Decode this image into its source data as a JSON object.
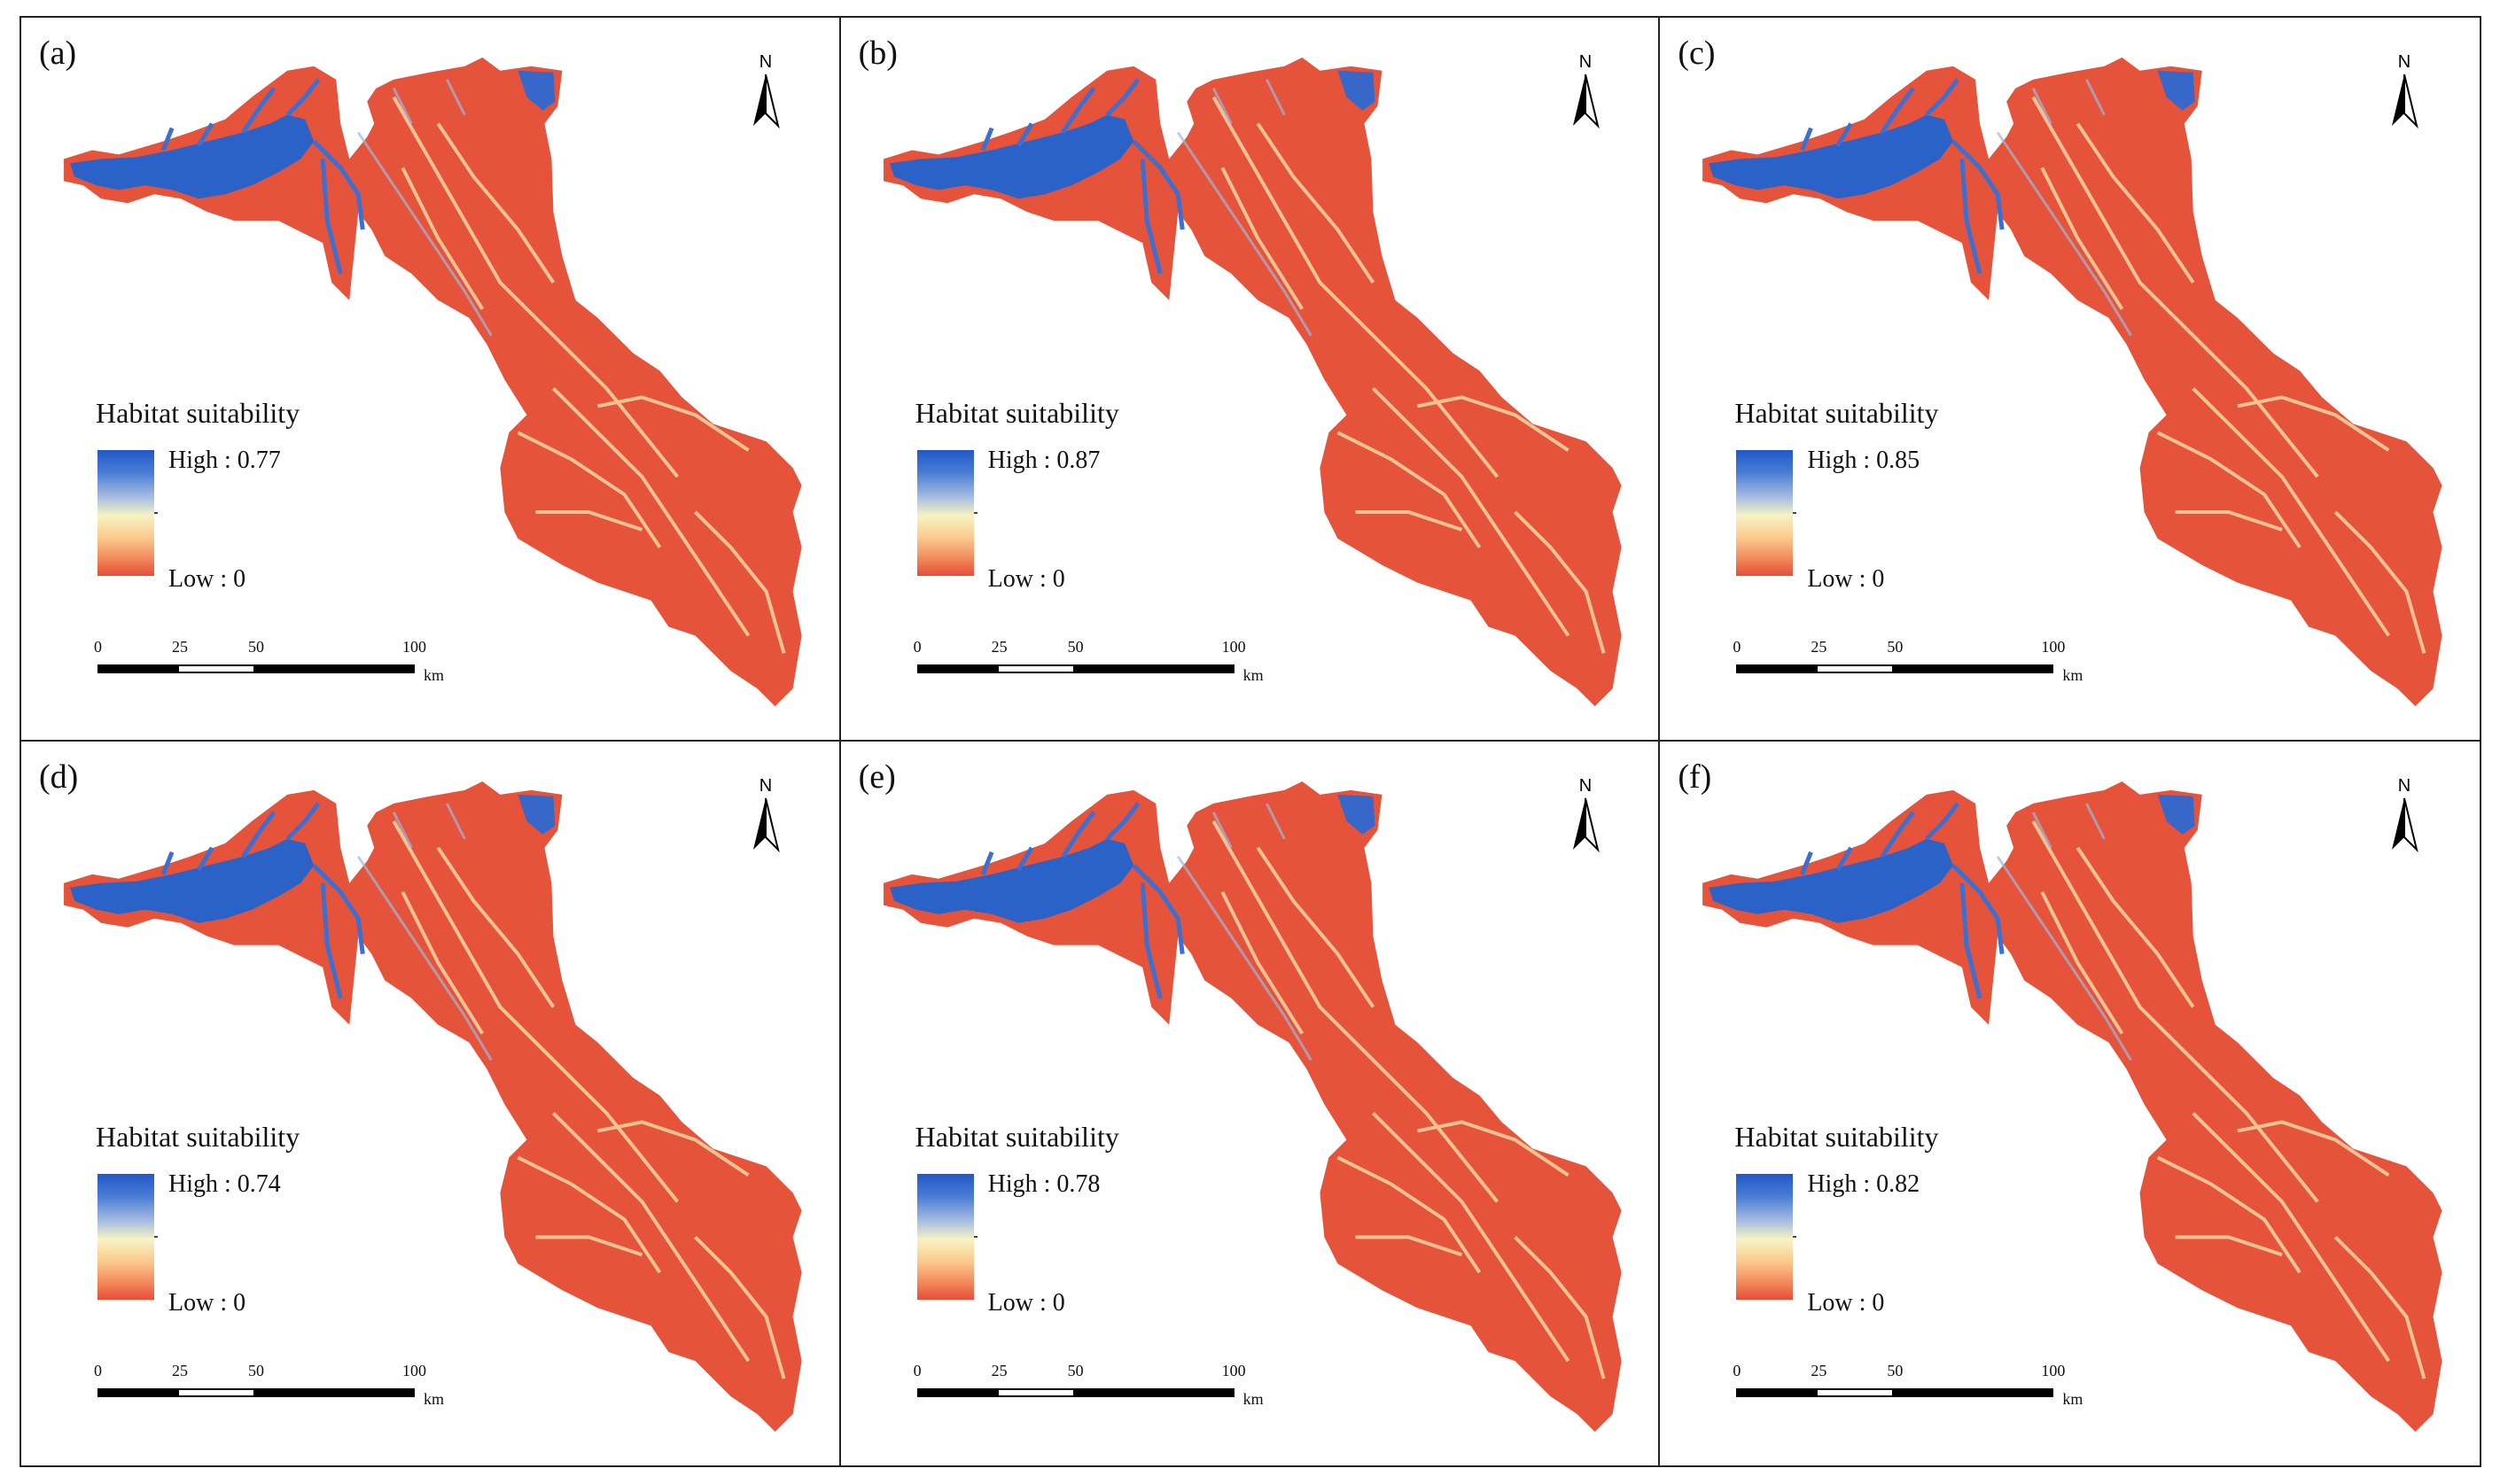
{
  "panels": [
    {
      "label": "(a)",
      "legend_title": "Habitat suitability",
      "high": "High : 0.77",
      "low": "Low : 0"
    },
    {
      "label": "(b)",
      "legend_title": "Habitat suitability",
      "high": "High : 0.87",
      "low": "Low : 0"
    },
    {
      "label": "(c)",
      "legend_title": "Habitat suitability",
      "high": "High : 0.85",
      "low": "Low : 0"
    },
    {
      "label": "(d)",
      "legend_title": "Habitat suitability",
      "high": "High : 0.74",
      "low": "Low : 0"
    },
    {
      "label": "(e)",
      "legend_title": "Habitat suitability",
      "high": "High : 0.78",
      "low": "Low : 0"
    },
    {
      "label": "(f)",
      "legend_title": "Habitat suitability",
      "high": "High : 0.82",
      "low": "Low : 0"
    }
  ],
  "north": "N",
  "scale": {
    "t0": "0",
    "t25": "25",
    "t50": "50",
    "t100": "100",
    "unit": "km"
  },
  "colors": {
    "high": "#2158c9",
    "mid": "#f6f4c4",
    "low": "#e64d38",
    "frame": "#222222"
  }
}
